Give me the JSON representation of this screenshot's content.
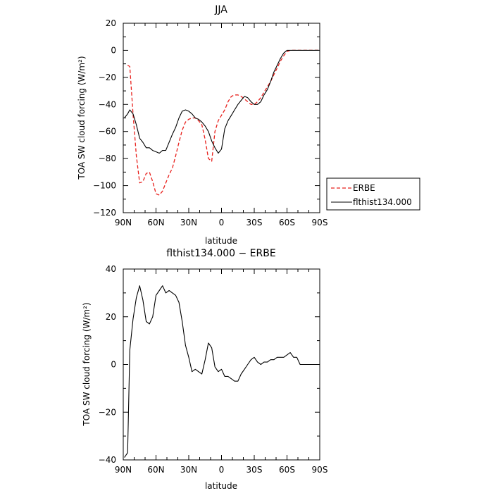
{
  "chart_data": [
    {
      "type": "line",
      "title": "JJA",
      "xlabel": "latitude",
      "ylabel": "TOA SW cloud forcing (W/m²)",
      "xlim": [
        90,
        -90
      ],
      "ylim": [
        -120,
        20
      ],
      "x_ticks": [
        90,
        60,
        30,
        0,
        -30,
        -60,
        -90
      ],
      "x_tick_labels": [
        "90N",
        "60N",
        "30N",
        "0",
        "30S",
        "60S",
        "90S"
      ],
      "y_ticks": [
        20,
        0,
        -20,
        -40,
        -60,
        -80,
        -100,
        -120
      ],
      "y_tick_labels": [
        "20",
        "0",
        "−20",
        "−40",
        "−60",
        "−80",
        "−100",
        "−120"
      ],
      "legend": "outside-right",
      "series": [
        {
          "name": "ERBE",
          "color": "#e8201c",
          "style": "dashed",
          "x": [
            86,
            84,
            81,
            78,
            75,
            72,
            69,
            66,
            63,
            60,
            57,
            54,
            51,
            48,
            45,
            42,
            39,
            36,
            33,
            30,
            27,
            24,
            21,
            18,
            15,
            12,
            9,
            6,
            3,
            0,
            -3,
            -6,
            -9,
            -12,
            -15,
            -18,
            -21,
            -24,
            -27,
            -30,
            -33,
            -36,
            -39,
            -42,
            -45,
            -48,
            -51,
            -54,
            -57,
            -60,
            -63,
            -66,
            -69,
            -72,
            -75,
            -78,
            -81,
            -84,
            -87,
            -89
          ],
          "y": [
            -11,
            -12,
            -47,
            -78,
            -98,
            -97,
            -91,
            -90,
            -97,
            -106,
            -107,
            -104,
            -98,
            -92,
            -87,
            -78,
            -68,
            -59,
            -53,
            -51,
            -50,
            -50,
            -52,
            -55,
            -66,
            -80,
            -82,
            -60,
            -52,
            -48,
            -44,
            -38,
            -34,
            -33,
            -33,
            -34,
            -36,
            -38,
            -40,
            -40,
            -38,
            -35,
            -31,
            -27,
            -23,
            -18,
            -13,
            -8,
            -4,
            -1,
            0,
            0,
            0,
            0,
            0,
            0,
            0,
            0,
            0,
            0
          ]
        },
        {
          "name": "flthist134.000",
          "color": "#000000",
          "style": "solid",
          "x": [
            89,
            86,
            84,
            81,
            78,
            75,
            72,
            69,
            66,
            63,
            60,
            57,
            54,
            51,
            48,
            45,
            42,
            39,
            36,
            33,
            30,
            27,
            24,
            21,
            18,
            15,
            12,
            9,
            6,
            3,
            0,
            -3,
            -6,
            -9,
            -12,
            -15,
            -18,
            -21,
            -24,
            -27,
            -30,
            -33,
            -36,
            -39,
            -42,
            -45,
            -48,
            -51,
            -54,
            -57,
            -60,
            -63,
            -66,
            -69,
            -72,
            -75,
            -78,
            -81,
            -84,
            -87,
            -89
          ],
          "y": [
            -50,
            -47,
            -44,
            -47,
            -55,
            -65,
            -68,
            -72,
            -72,
            -74,
            -75,
            -76,
            -74,
            -74,
            -68,
            -62,
            -57,
            -50,
            -45,
            -44,
            -45,
            -47,
            -50,
            -51,
            -53,
            -56,
            -60,
            -67,
            -72,
            -76,
            -73,
            -58,
            -52,
            -48,
            -44,
            -40,
            -37,
            -34,
            -35,
            -38,
            -40,
            -40,
            -38,
            -33,
            -29,
            -23,
            -16,
            -11,
            -6,
            -2,
            0,
            0,
            0,
            0,
            0,
            0,
            0,
            0,
            0,
            0,
            0
          ]
        }
      ]
    },
    {
      "type": "line",
      "title": "flthist134.000 − ERBE",
      "xlabel": "latitude",
      "ylabel": "TOA SW cloud forcing (W/m²)",
      "xlim": [
        90,
        -90
      ],
      "ylim": [
        -40,
        40
      ],
      "x_ticks": [
        90,
        60,
        30,
        0,
        -30,
        -60,
        -90
      ],
      "x_tick_labels": [
        "90N",
        "60N",
        "30N",
        "0",
        "30S",
        "60S",
        "90S"
      ],
      "y_ticks": [
        40,
        20,
        0,
        -20,
        -40
      ],
      "y_tick_labels": [
        "40",
        "20",
        "0",
        "−20",
        "−40"
      ],
      "series": [
        {
          "color": "#000000",
          "style": "solid",
          "x": [
            89,
            86,
            84,
            81,
            78,
            75,
            72,
            69,
            66,
            63,
            60,
            57,
            54,
            51,
            48,
            45,
            42,
            39,
            36,
            33,
            30,
            27,
            24,
            21,
            18,
            15,
            12,
            9,
            6,
            3,
            0,
            -3,
            -6,
            -9,
            -12,
            -15,
            -18,
            -21,
            -24,
            -27,
            -30,
            -33,
            -36,
            -39,
            -42,
            -45,
            -48,
            -51,
            -54,
            -57,
            -60,
            -63,
            -66,
            -69,
            -72,
            -75,
            -78,
            -81,
            -84,
            -87,
            -89
          ],
          "y": [
            -39,
            -37,
            6,
            19,
            28,
            33,
            27,
            18,
            17,
            20,
            29,
            31,
            33,
            30,
            31,
            30,
            29,
            26,
            18,
            8,
            3,
            -3,
            -2,
            -3,
            -4,
            2,
            9,
            7,
            -1,
            -3,
            -2,
            -5,
            -5,
            -6,
            -7,
            -7,
            -4,
            -2,
            0,
            2,
            3,
            1,
            0,
            1,
            1,
            2,
            2,
            3,
            3,
            3,
            4,
            5,
            3,
            3,
            0,
            0,
            0,
            0,
            0,
            0,
            0
          ]
        }
      ]
    }
  ]
}
